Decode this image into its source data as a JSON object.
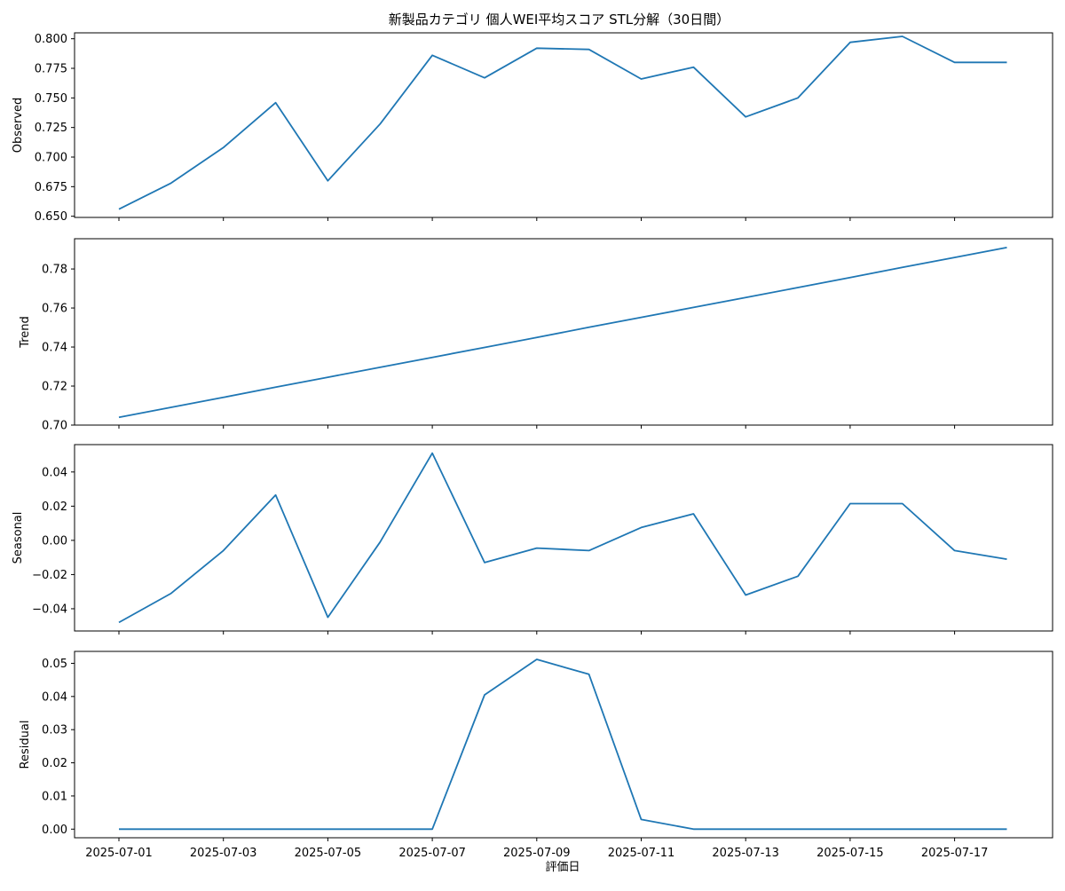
{
  "title": "新製品カテゴリ 個人WEI平均スコア STL分解（30日間）",
  "xlabel": "評価日",
  "line_color": "#1f77b4",
  "x_tick_labels": [
    "2025-07-01",
    "2025-07-03",
    "2025-07-05",
    "2025-07-07",
    "2025-07-09",
    "2025-07-11",
    "2025-07-13",
    "2025-07-15",
    "2025-07-17"
  ],
  "chart_data": [
    {
      "type": "line",
      "ylabel": "Observed",
      "x": [
        "2025-07-01",
        "2025-07-02",
        "2025-07-03",
        "2025-07-04",
        "2025-07-05",
        "2025-07-06",
        "2025-07-07",
        "2025-07-08",
        "2025-07-09",
        "2025-07-10",
        "2025-07-11",
        "2025-07-12",
        "2025-07-13",
        "2025-07-14",
        "2025-07-15",
        "2025-07-16",
        "2025-07-17",
        "2025-07-18"
      ],
      "values": [
        0.656,
        0.678,
        0.708,
        0.746,
        0.68,
        0.728,
        0.786,
        0.767,
        0.792,
        0.791,
        0.766,
        0.776,
        0.734,
        0.75,
        0.797,
        0.802,
        0.78,
        0.78
      ],
      "ylim": [
        0.649,
        0.805
      ],
      "yticks": [
        0.65,
        0.675,
        0.7,
        0.725,
        0.75,
        0.775,
        0.8
      ],
      "ytick_labels": [
        "0.650",
        "0.675",
        "0.700",
        "0.725",
        "0.750",
        "0.775",
        "0.800"
      ]
    },
    {
      "type": "line",
      "ylabel": "Trend",
      "x": [
        "2025-07-01",
        "2025-07-02",
        "2025-07-03",
        "2025-07-04",
        "2025-07-05",
        "2025-07-06",
        "2025-07-07",
        "2025-07-08",
        "2025-07-09",
        "2025-07-10",
        "2025-07-11",
        "2025-07-12",
        "2025-07-13",
        "2025-07-14",
        "2025-07-15",
        "2025-07-16",
        "2025-07-17",
        "2025-07-18"
      ],
      "values": [
        0.704,
        0.7091,
        0.7142,
        0.7194,
        0.7245,
        0.7296,
        0.7347,
        0.7398,
        0.7449,
        0.7501,
        0.7552,
        0.7603,
        0.7654,
        0.7705,
        0.7756,
        0.7808,
        0.7859,
        0.791
      ],
      "ylim": [
        0.7,
        0.7955
      ],
      "yticks": [
        0.7,
        0.72,
        0.74,
        0.76,
        0.78
      ],
      "ytick_labels": [
        "0.70",
        "0.72",
        "0.74",
        "0.76",
        "0.78"
      ]
    },
    {
      "type": "line",
      "ylabel": "Seasonal",
      "x": [
        "2025-07-01",
        "2025-07-02",
        "2025-07-03",
        "2025-07-04",
        "2025-07-05",
        "2025-07-06",
        "2025-07-07",
        "2025-07-08",
        "2025-07-09",
        "2025-07-10",
        "2025-07-11",
        "2025-07-12",
        "2025-07-13",
        "2025-07-14",
        "2025-07-15",
        "2025-07-16",
        "2025-07-17",
        "2025-07-18"
      ],
      "values": [
        -0.048,
        -0.031,
        -0.006,
        0.0265,
        -0.045,
        -0.001,
        0.051,
        -0.013,
        -0.0045,
        -0.006,
        0.0075,
        0.0155,
        -0.032,
        -0.021,
        0.0215,
        0.0215,
        -0.006,
        -0.011
      ],
      "ylim": [
        -0.053,
        0.056
      ],
      "yticks": [
        -0.04,
        -0.02,
        0.0,
        0.02,
        0.04
      ],
      "ytick_labels": [
        "−0.04",
        "−0.02",
        "0.00",
        "0.02",
        "0.04"
      ]
    },
    {
      "type": "line",
      "ylabel": "Residual",
      "x": [
        "2025-07-01",
        "2025-07-02",
        "2025-07-03",
        "2025-07-04",
        "2025-07-05",
        "2025-07-06",
        "2025-07-07",
        "2025-07-08",
        "2025-07-09",
        "2025-07-10",
        "2025-07-11",
        "2025-07-12",
        "2025-07-13",
        "2025-07-14",
        "2025-07-15",
        "2025-07-16",
        "2025-07-17",
        "2025-07-18"
      ],
      "values": [
        0,
        0,
        0,
        0,
        0,
        0,
        0,
        0.0405,
        0.0512,
        0.0467,
        0.0029,
        0,
        0,
        0,
        0,
        0,
        0,
        0
      ],
      "ylim": [
        -0.0026,
        0.0536
      ],
      "yticks": [
        0.0,
        0.01,
        0.02,
        0.03,
        0.04,
        0.05
      ],
      "ytick_labels": [
        "0.00",
        "0.01",
        "0.02",
        "0.03",
        "0.04",
        "0.05"
      ]
    }
  ]
}
